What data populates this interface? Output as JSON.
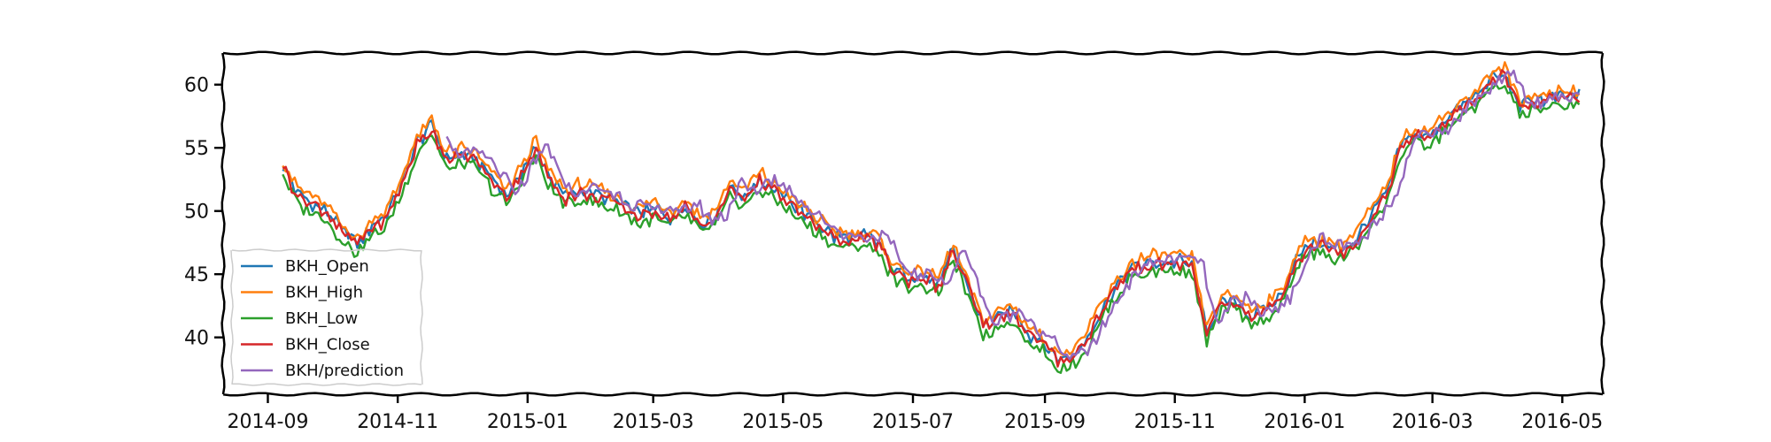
{
  "chart_data": {
    "type": "line",
    "title": "",
    "xlabel": "",
    "ylabel": "",
    "x_range": [
      "2014-08-11",
      "2016-05-20"
    ],
    "ylim": [
      35.5,
      62.5
    ],
    "x_ticks": [
      {
        "date": "2014-09-01",
        "label": "2014-09"
      },
      {
        "date": "2014-11-01",
        "label": "2014-11"
      },
      {
        "date": "2015-01-01",
        "label": "2015-01"
      },
      {
        "date": "2015-03-01",
        "label": "2015-03"
      },
      {
        "date": "2015-05-01",
        "label": "2015-05"
      },
      {
        "date": "2015-07-01",
        "label": "2015-07"
      },
      {
        "date": "2015-09-01",
        "label": "2015-09"
      },
      {
        "date": "2015-11-01",
        "label": "2015-11"
      },
      {
        "date": "2016-01-01",
        "label": "2016-01"
      },
      {
        "date": "2016-03-01",
        "label": "2016-03"
      },
      {
        "date": "2016-05-01",
        "label": "2016-05"
      }
    ],
    "y_ticks": [
      {
        "value": 40,
        "label": "40"
      },
      {
        "value": 45,
        "label": "45"
      },
      {
        "value": 50,
        "label": "50"
      },
      {
        "value": 55,
        "label": "55"
      },
      {
        "value": 60,
        "label": "60"
      }
    ],
    "grid": false,
    "legend_position": "lower-left",
    "series": [
      {
        "name": "BKH_Open",
        "color": "#1f77b4",
        "dy": 0.15,
        "start": "2014-09-08"
      },
      {
        "name": "BKH_High",
        "color": "#ff7f0e",
        "dy": 0.6,
        "start": "2014-09-08"
      },
      {
        "name": "BKH_Low",
        "color": "#2ca02c",
        "dy": -0.6,
        "start": "2014-09-08"
      },
      {
        "name": "BKH_Close",
        "color": "#d62728",
        "dy": 0.0,
        "start": "2014-09-08"
      },
      {
        "name": "BKH/prediction",
        "color": "#9467bd",
        "dy": 0.3,
        "lag_days": 5,
        "start": "2014-11-24"
      }
    ],
    "close_points": [
      [
        "2014-09-08",
        53.5
      ],
      [
        "2014-09-15",
        51.2
      ],
      [
        "2014-09-22",
        50.5
      ],
      [
        "2014-09-29",
        49.8
      ],
      [
        "2014-10-06",
        48.2
      ],
      [
        "2014-10-13",
        47.3
      ],
      [
        "2014-10-20",
        48.7
      ],
      [
        "2014-10-27",
        49.5
      ],
      [
        "2014-11-03",
        52.0
      ],
      [
        "2014-11-10",
        55.2
      ],
      [
        "2014-11-17",
        56.6
      ],
      [
        "2014-11-24",
        54.0
      ],
      [
        "2014-12-01",
        54.3
      ],
      [
        "2014-12-08",
        54.0
      ],
      [
        "2014-12-15",
        52.5
      ],
      [
        "2014-12-22",
        51.0
      ],
      [
        "2014-12-29",
        53.0
      ],
      [
        "2015-01-05",
        54.9
      ],
      [
        "2015-01-12",
        52.3
      ],
      [
        "2015-01-19",
        51.0
      ],
      [
        "2015-01-26",
        51.5
      ],
      [
        "2015-02-02",
        51.2
      ],
      [
        "2015-02-09",
        50.8
      ],
      [
        "2015-02-16",
        50.2
      ],
      [
        "2015-02-23",
        49.6
      ],
      [
        "2015-03-02",
        50.1
      ],
      [
        "2015-03-09",
        49.4
      ],
      [
        "2015-03-16",
        50.3
      ],
      [
        "2015-03-23",
        49.0
      ],
      [
        "2015-03-30",
        49.3
      ],
      [
        "2015-04-06",
        51.8
      ],
      [
        "2015-04-13",
        51.0
      ],
      [
        "2015-04-20",
        52.4
      ],
      [
        "2015-04-27",
        51.5
      ],
      [
        "2015-05-04",
        50.6
      ],
      [
        "2015-05-11",
        49.6
      ],
      [
        "2015-05-18",
        48.7
      ],
      [
        "2015-05-25",
        47.8
      ],
      [
        "2015-06-01",
        47.6
      ],
      [
        "2015-06-08",
        47.9
      ],
      [
        "2015-06-15",
        47.3
      ],
      [
        "2015-06-22",
        45.2
      ],
      [
        "2015-06-29",
        44.6
      ],
      [
        "2015-07-06",
        44.7
      ],
      [
        "2015-07-13",
        44.0
      ],
      [
        "2015-07-20",
        46.8
      ],
      [
        "2015-07-27",
        43.8
      ],
      [
        "2015-08-03",
        40.7
      ],
      [
        "2015-08-10",
        41.5
      ],
      [
        "2015-08-17",
        42.0
      ],
      [
        "2015-08-24",
        40.2
      ],
      [
        "2015-08-31",
        39.5
      ],
      [
        "2015-09-07",
        38.1
      ],
      [
        "2015-09-14",
        38.4
      ],
      [
        "2015-09-21",
        39.8
      ],
      [
        "2015-09-28",
        42.2
      ],
      [
        "2015-10-05",
        43.9
      ],
      [
        "2015-10-12",
        45.4
      ],
      [
        "2015-10-19",
        45.7
      ],
      [
        "2015-10-26",
        45.8
      ],
      [
        "2015-11-02",
        45.9
      ],
      [
        "2015-11-09",
        45.6
      ],
      [
        "2015-11-16",
        40.3
      ],
      [
        "2015-11-23",
        42.6
      ],
      [
        "2015-11-30",
        42.8
      ],
      [
        "2015-12-07",
        41.5
      ],
      [
        "2015-12-14",
        42.2
      ],
      [
        "2015-12-21",
        43.0
      ],
      [
        "2015-12-28",
        46.0
      ],
      [
        "2016-01-04",
        47.4
      ],
      [
        "2016-01-11",
        47.0
      ],
      [
        "2016-01-18",
        46.8
      ],
      [
        "2016-01-25",
        47.6
      ],
      [
        "2016-02-01",
        49.5
      ],
      [
        "2016-02-08",
        51.0
      ],
      [
        "2016-02-15",
        55.0
      ],
      [
        "2016-02-22",
        56.0
      ],
      [
        "2016-02-29",
        55.8
      ],
      [
        "2016-03-07",
        57.0
      ],
      [
        "2016-03-14",
        58.0
      ],
      [
        "2016-03-21",
        58.8
      ],
      [
        "2016-03-28",
        60.2
      ],
      [
        "2016-04-04",
        60.6
      ],
      [
        "2016-04-11",
        58.2
      ],
      [
        "2016-04-18",
        58.6
      ],
      [
        "2016-04-25",
        58.7
      ],
      [
        "2016-05-02",
        58.9
      ],
      [
        "2016-05-09",
        59.1
      ]
    ]
  }
}
